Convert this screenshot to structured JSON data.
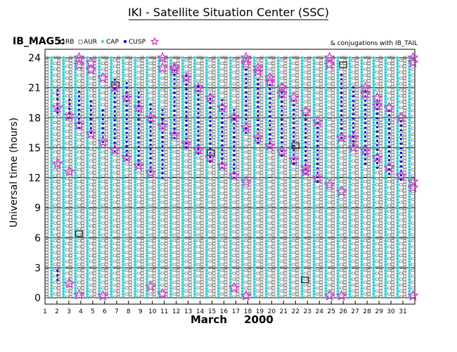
{
  "header": {
    "title": "IKI - Satellite Situation Center (SSC)"
  },
  "chart_data": {
    "type": "scatter",
    "title": "IKI - Satellite Situation Center (SSC)",
    "spacecraft": "IB_MAG5:",
    "conjugation_note": "& conjugations with IB_TAIL",
    "legend": [
      {
        "code": "RB",
        "marker": "square",
        "color": "#000000"
      },
      {
        "code": "AUR",
        "marker": "square",
        "color": "#808080"
      },
      {
        "code": "CAP",
        "marker": "asterisk",
        "color": "#33cccc"
      },
      {
        "code": "CUSP",
        "marker": "dot",
        "color": "#0000cc"
      },
      {
        "code": "conjugation",
        "marker": "star",
        "color": "#cc33cc"
      }
    ],
    "ylabel": "Universal time (hours)",
    "ylim": [
      0,
      24
    ],
    "y_ticks": [
      "0",
      "3",
      "6",
      "9",
      "12",
      "15",
      "18",
      "21",
      "24"
    ],
    "x_ticks": [
      "1",
      "2",
      "3",
      "4",
      "5",
      "6",
      "7",
      "8",
      "9",
      "10",
      "11",
      "12",
      "13",
      "14",
      "15",
      "16",
      "17",
      "18",
      "19",
      "20",
      "21",
      "22",
      "23",
      "24",
      "25",
      "26",
      "27",
      "28",
      "29",
      "30",
      "31"
    ],
    "x_month": "March",
    "x_year": "2000",
    "xlim": [
      1,
      32
    ],
    "region_order": [
      "cap",
      "aur",
      "cusp",
      "rb"
    ],
    "passes": [
      {
        "day": 1.35,
        "sw_top": 24,
        "sw_bot": 0
      },
      {
        "day": 2.18,
        "sw_top": 24,
        "sw_bot": 0
      },
      {
        "day": 3.0,
        "sw_top": 24,
        "sw_bot": 0
      },
      {
        "day": 3.85,
        "sw_top": 24,
        "sw_bot": 0
      }
    ],
    "rb_boxes": [
      {
        "day": 3.85,
        "hour": 6.4
      },
      {
        "day": 6.9,
        "hour": 21.3
      },
      {
        "day": 14.9,
        "hour": 14.5
      },
      {
        "day": 22.0,
        "hour": 15.2
      },
      {
        "day": 22.8,
        "hour": 1.8
      },
      {
        "day": 26.0,
        "hour": 23.3
      }
    ],
    "conjugations": [
      {
        "day": 2.05,
        "hour": 13.4
      },
      {
        "day": 2.05,
        "hour": 19.0
      },
      {
        "day": 3.05,
        "hour": 12.6
      },
      {
        "day": 3.05,
        "hour": 18.2
      },
      {
        "day": 3.05,
        "hour": 1.4
      },
      {
        "day": 3.85,
        "hour": 24.0
      },
      {
        "day": 3.85,
        "hour": 17.3
      },
      {
        "day": 3.85,
        "hour": 0.3
      },
      {
        "day": 3.85,
        "hour": 23.3
      },
      {
        "day": 4.85,
        "hour": 22.8
      },
      {
        "day": 4.85,
        "hour": 16.4
      },
      {
        "day": 4.85,
        "hour": 23.5
      },
      {
        "day": 5.85,
        "hour": 22.0
      },
      {
        "day": 5.85,
        "hour": 15.6
      },
      {
        "day": 5.85,
        "hour": 0.2
      },
      {
        "day": 6.85,
        "hour": 21.0
      },
      {
        "day": 6.85,
        "hour": 14.8
      },
      {
        "day": 7.85,
        "hour": 20.0
      },
      {
        "day": 7.85,
        "hour": 14.0
      },
      {
        "day": 8.85,
        "hour": 19.0
      },
      {
        "day": 8.85,
        "hour": 13.2
      },
      {
        "day": 9.85,
        "hour": 18.0
      },
      {
        "day": 9.85,
        "hour": 12.5
      },
      {
        "day": 9.85,
        "hour": 1.1
      },
      {
        "day": 10.85,
        "hour": 24.0
      },
      {
        "day": 10.85,
        "hour": 17.2
      },
      {
        "day": 10.85,
        "hour": 0.4
      },
      {
        "day": 10.85,
        "hour": 23.0
      },
      {
        "day": 11.85,
        "hour": 23.0
      },
      {
        "day": 11.85,
        "hour": 16.3
      },
      {
        "day": 11.85,
        "hour": 22.8
      },
      {
        "day": 12.85,
        "hour": 22.0
      },
      {
        "day": 12.85,
        "hour": 15.4
      },
      {
        "day": 13.85,
        "hour": 21.0
      },
      {
        "day": 13.85,
        "hour": 14.8
      },
      {
        "day": 14.85,
        "hour": 20.0
      },
      {
        "day": 14.85,
        "hour": 14.0
      },
      {
        "day": 15.85,
        "hour": 19.0
      },
      {
        "day": 15.85,
        "hour": 13.2
      },
      {
        "day": 16.85,
        "hour": 18.0
      },
      {
        "day": 16.85,
        "hour": 12.2
      },
      {
        "day": 16.85,
        "hour": 1.0
      },
      {
        "day": 17.85,
        "hour": 24.0
      },
      {
        "day": 17.85,
        "hour": 17.0
      },
      {
        "day": 17.85,
        "hour": 11.6
      },
      {
        "day": 17.85,
        "hour": 0.2
      },
      {
        "day": 17.85,
        "hour": 23.4
      },
      {
        "day": 18.85,
        "hour": 23.0
      },
      {
        "day": 18.85,
        "hour": 16.0
      },
      {
        "day": 18.85,
        "hour": 22.6
      },
      {
        "day": 19.85,
        "hour": 22.0
      },
      {
        "day": 19.85,
        "hour": 15.2
      },
      {
        "day": 19.85,
        "hour": 21.6
      },
      {
        "day": 20.85,
        "hour": 21.0
      },
      {
        "day": 20.85,
        "hour": 14.6
      },
      {
        "day": 20.85,
        "hour": 20.4
      },
      {
        "day": 21.85,
        "hour": 20.0
      },
      {
        "day": 21.85,
        "hour": 13.8
      },
      {
        "day": 22.85,
        "hour": 18.6
      },
      {
        "day": 22.85,
        "hour": 13.0
      },
      {
        "day": 22.85,
        "hour": 12.6
      },
      {
        "day": 23.85,
        "hour": 17.6
      },
      {
        "day": 23.85,
        "hour": 12.0
      },
      {
        "day": 24.85,
        "hour": 24.0
      },
      {
        "day": 24.85,
        "hour": 11.3
      },
      {
        "day": 24.85,
        "hour": 0.2
      },
      {
        "day": 24.85,
        "hour": 23.3
      },
      {
        "day": 25.85,
        "hour": 16.0
      },
      {
        "day": 25.85,
        "hour": 10.6
      },
      {
        "day": 25.85,
        "hour": 0.2
      },
      {
        "day": 26.85,
        "hour": 16.0
      },
      {
        "day": 26.85,
        "hour": 15.0
      },
      {
        "day": 27.85,
        "hour": 21.0
      },
      {
        "day": 27.85,
        "hour": 14.7
      },
      {
        "day": 27.85,
        "hour": 20.4
      },
      {
        "day": 28.85,
        "hour": 20.0
      },
      {
        "day": 28.85,
        "hour": 14.0
      },
      {
        "day": 28.85,
        "hour": 19.2
      },
      {
        "day": 29.85,
        "hour": 19.0
      },
      {
        "day": 29.85,
        "hour": 13.0
      },
      {
        "day": 30.85,
        "hour": 18.0
      },
      {
        "day": 30.85,
        "hour": 12.2
      },
      {
        "day": 31.85,
        "hour": 24.0
      },
      {
        "day": 31.85,
        "hour": 23.5
      },
      {
        "day": 31.85,
        "hour": 11.6
      },
      {
        "day": 31.85,
        "hour": 11.0
      },
      {
        "day": 31.85,
        "hour": 0.2
      }
    ],
    "cusp_ranges": [
      {
        "day": 2.05,
        "from": 18.5,
        "to": 21.0
      },
      {
        "day": 2.05,
        "from": 1.8,
        "to": 2.8
      },
      {
        "day": 3.05,
        "from": 18.0,
        "to": 20.0
      },
      {
        "day": 3.85,
        "from": 17.0,
        "to": 20.8
      },
      {
        "day": 4.85,
        "from": 16.5,
        "to": 19.8
      },
      {
        "day": 5.85,
        "from": 15.6,
        "to": 19.0
      },
      {
        "day": 6.85,
        "from": 14.6,
        "to": 22.0
      },
      {
        "day": 7.85,
        "from": 13.8,
        "to": 21.5
      },
      {
        "day": 8.85,
        "from": 13.3,
        "to": 20.6
      },
      {
        "day": 9.85,
        "from": 12.6,
        "to": 19.7
      },
      {
        "day": 10.85,
        "from": 12.0,
        "to": 18.8
      },
      {
        "day": 11.85,
        "from": 16.0,
        "to": 23.0
      },
      {
        "day": 12.85,
        "from": 15.0,
        "to": 22.3
      },
      {
        "day": 13.85,
        "from": 14.4,
        "to": 21.4
      },
      {
        "day": 14.85,
        "from": 13.6,
        "to": 20.6
      },
      {
        "day": 15.85,
        "from": 13.0,
        "to": 19.8
      },
      {
        "day": 16.85,
        "from": 12.0,
        "to": 18.9
      },
      {
        "day": 17.85,
        "from": 16.5,
        "to": 23.0
      },
      {
        "day": 18.85,
        "from": 15.5,
        "to": 22.2
      },
      {
        "day": 19.85,
        "from": 15.0,
        "to": 21.4
      },
      {
        "day": 20.85,
        "from": 14.2,
        "to": 20.6
      },
      {
        "day": 21.85,
        "from": 13.4,
        "to": 19.8
      },
      {
        "day": 22.85,
        "from": 12.4,
        "to": 18.6
      },
      {
        "day": 23.85,
        "from": 11.6,
        "to": 17.6
      },
      {
        "day": 25.85,
        "from": 16.0,
        "to": 22.4
      },
      {
        "day": 26.85,
        "from": 15.2,
        "to": 21.4
      },
      {
        "day": 27.85,
        "from": 13.4,
        "to": 20.6
      },
      {
        "day": 28.85,
        "from": 13.0,
        "to": 19.8
      },
      {
        "day": 29.85,
        "from": 12.4,
        "to": 18.8
      },
      {
        "day": 30.85,
        "from": 11.8,
        "to": 18.0
      }
    ]
  }
}
